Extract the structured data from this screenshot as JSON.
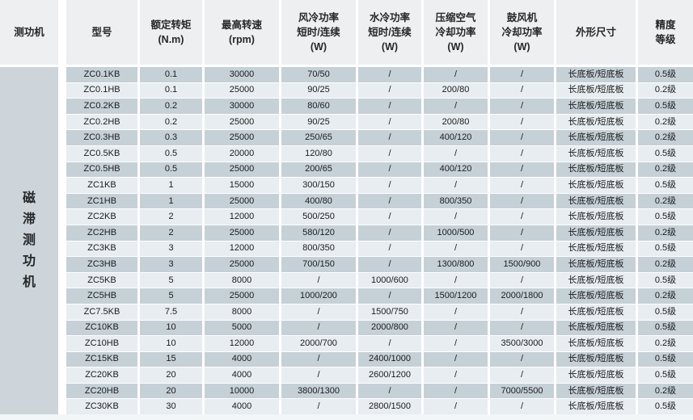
{
  "table": {
    "category_label": "磁滞测功机",
    "headers": [
      "测功机",
      "型号",
      "额定转矩\n(N.m)",
      "最高转速\n(rpm)",
      "风冷功率\n短时/连续\n(W)",
      "水冷功率\n短时/连续\n(W)",
      "压缩空气\n冷却功率\n(W)",
      "鼓风机\n冷却功率\n(W)",
      "外形尺寸",
      "精度\n等级"
    ],
    "rows": [
      [
        "ZC0.1KB",
        "0.1",
        "30000",
        "70/50",
        "/",
        "/",
        "/",
        "长底板/短底板",
        "0.5级"
      ],
      [
        "ZC0.1HB",
        "0.1",
        "25000",
        "90/25",
        "/",
        "200/80",
        "/",
        "长底板/短底板",
        "0.2级"
      ],
      [
        "ZC0.2KB",
        "0.2",
        "30000",
        "80/60",
        "/",
        "/",
        "/",
        "长底板/短底板",
        "0.5级"
      ],
      [
        "ZC0.2HB",
        "0.2",
        "25000",
        "90/25",
        "/",
        "200/80",
        "/",
        "长底板/短底板",
        "0.2级"
      ],
      [
        "ZC0.3HB",
        "0.3",
        "25000",
        "250/65",
        "/",
        "400/120",
        "/",
        "长底板/短底板",
        "0.2级"
      ],
      [
        "ZC0.5KB",
        "0.5",
        "20000",
        "120/80",
        "/",
        "/",
        "/",
        "长底板/短底板",
        "0.5级"
      ],
      [
        "ZC0.5HB",
        "0.5",
        "25000",
        "200/65",
        "/",
        "400/120",
        "/",
        "长底板/短底板",
        "0.2级"
      ],
      [
        "ZC1KB",
        "1",
        "15000",
        "300/150",
        "/",
        "/",
        "/",
        "长底板/短底板",
        "0.5级"
      ],
      [
        "ZC1HB",
        "1",
        "25000",
        "400/80",
        "/",
        "800/350",
        "/",
        "长底板/短底板",
        "0.2级"
      ],
      [
        "ZC2KB",
        "2",
        "12000",
        "500/250",
        "/",
        "/",
        "/",
        "长底板/短底板",
        "0.5级"
      ],
      [
        "ZC2HB",
        "2",
        "25000",
        "580/120",
        "/",
        "1000/500",
        "/",
        "长底板/短底板",
        "0.2级"
      ],
      [
        "ZC3KB",
        "3",
        "12000",
        "800/350",
        "/",
        "/",
        "/",
        "长底板/短底板",
        "0.5级"
      ],
      [
        "ZC3HB",
        "3",
        "25000",
        "700/150",
        "/",
        "1300/800",
        "1500/900",
        "长底板/短底板",
        "0.2级"
      ],
      [
        "ZC5KB",
        "5",
        "8000",
        "/",
        "1000/600",
        "/",
        "/",
        "长底板/短底板",
        "0.5级"
      ],
      [
        "ZC5HB",
        "5",
        "25000",
        "1000/200",
        "/",
        "1500/1200",
        "2000/1800",
        "长底板/短底板",
        "0.2级"
      ],
      [
        "ZC7.5KB",
        "7.5",
        "8000",
        "/",
        "1500/750",
        "/",
        "/",
        "长底板/短底板",
        "0.5级"
      ],
      [
        "ZC10KB",
        "10",
        "5000",
        "/",
        "2000/800",
        "/",
        "/",
        "长底板/短底板",
        "0.5级"
      ],
      [
        "ZC10HB",
        "10",
        "12000",
        "2000/700",
        "/",
        "/",
        "3500/3000",
        "长底板/短底板",
        "0.2级"
      ],
      [
        "ZC15KB",
        "15",
        "4000",
        "/",
        "2400/1000",
        "/",
        "/",
        "长底板/短底板",
        "0.5级"
      ],
      [
        "ZC20KB",
        "20",
        "4000",
        "/",
        "2600/1200",
        "/",
        "/",
        "长底板/短底板",
        "0.5级"
      ],
      [
        "ZC20HB",
        "20",
        "10000",
        "3800/1300",
        "/",
        "/",
        "7000/5500",
        "长底板/短底板",
        "0.2级"
      ],
      [
        "ZC30KB",
        "30",
        "4000",
        "/",
        "2800/1500",
        "/",
        "/",
        "长底板/短底板",
        "0.5级"
      ]
    ]
  },
  "colors": {
    "header_bg": "#edeff0",
    "row_dark": "#c6d0d7",
    "row_light": "#e7edf0",
    "category_bg": "#cdd5da",
    "separator": "#ffffff",
    "text": "#1c1c1e"
  }
}
